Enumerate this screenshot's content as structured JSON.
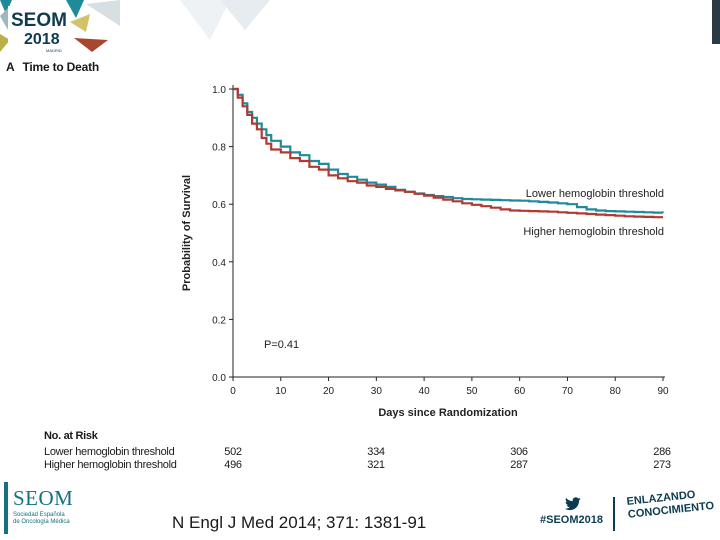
{
  "header": {
    "logo_word": "SEOM",
    "logo_year": "2018",
    "logo_small": "MADRID",
    "panel_letter": "A",
    "panel_title": "Time to Death"
  },
  "chart_data": {
    "type": "line",
    "title": "Time to Death",
    "xlabel": "Days since Randomization",
    "ylabel": "Probability of Survival",
    "xlim": [
      0,
      90
    ],
    "ylim": [
      0.0,
      1.0
    ],
    "x_ticks": [
      "0",
      "10",
      "20",
      "30",
      "40",
      "50",
      "60",
      "70",
      "80",
      "90"
    ],
    "y_ticks": [
      "0.0",
      "0.2",
      "0.4",
      "0.6",
      "0.8",
      "1.0"
    ],
    "annotation": "P=0.41",
    "series": [
      {
        "name": "Lower hemoglobin threshold",
        "color": "#1f8a9a",
        "x": [
          0,
          1,
          2,
          3,
          4,
          5,
          6,
          7,
          8,
          10,
          12,
          14,
          16,
          18,
          20,
          22,
          24,
          26,
          28,
          30,
          32,
          34,
          36,
          38,
          40,
          42,
          44,
          46,
          48,
          50,
          52,
          54,
          56,
          58,
          60,
          62,
          64,
          66,
          68,
          70,
          72,
          74,
          76,
          78,
          80,
          82,
          84,
          86,
          88,
          90
        ],
        "values": [
          1.0,
          0.98,
          0.95,
          0.92,
          0.9,
          0.88,
          0.86,
          0.84,
          0.82,
          0.8,
          0.78,
          0.77,
          0.75,
          0.74,
          0.72,
          0.705,
          0.695,
          0.685,
          0.675,
          0.668,
          0.66,
          0.65,
          0.643,
          0.637,
          0.632,
          0.628,
          0.625,
          0.621,
          0.618,
          0.617,
          0.616,
          0.615,
          0.614,
          0.613,
          0.612,
          0.61,
          0.608,
          0.606,
          0.603,
          0.6,
          0.59,
          0.582,
          0.578,
          0.576,
          0.575,
          0.574,
          0.573,
          0.572,
          0.571,
          0.57
        ]
      },
      {
        "name": "Higher hemoglobin threshold",
        "color": "#b03a32",
        "x": [
          0,
          1,
          2,
          3,
          4,
          5,
          6,
          7,
          8,
          10,
          12,
          14,
          16,
          18,
          20,
          22,
          24,
          26,
          28,
          30,
          32,
          34,
          36,
          38,
          40,
          42,
          44,
          46,
          48,
          50,
          52,
          54,
          56,
          58,
          60,
          62,
          64,
          66,
          68,
          70,
          72,
          74,
          76,
          78,
          80,
          82,
          84,
          86,
          88,
          90
        ],
        "values": [
          1.0,
          0.97,
          0.94,
          0.91,
          0.88,
          0.86,
          0.83,
          0.81,
          0.79,
          0.78,
          0.76,
          0.75,
          0.73,
          0.72,
          0.7,
          0.69,
          0.68,
          0.675,
          0.665,
          0.66,
          0.653,
          0.648,
          0.643,
          0.636,
          0.63,
          0.623,
          0.616,
          0.61,
          0.603,
          0.598,
          0.593,
          0.588,
          0.582,
          0.578,
          0.577,
          0.576,
          0.575,
          0.574,
          0.572,
          0.57,
          0.568,
          0.566,
          0.564,
          0.562,
          0.56,
          0.558,
          0.557,
          0.556,
          0.555,
          0.555
        ]
      }
    ]
  },
  "risk_table": {
    "title": "No. at Risk",
    "days": [
      0,
      30,
      60,
      90
    ],
    "rows": [
      {
        "label": "Lower hemoglobin threshold",
        "values": [
          "502",
          "334",
          "306",
          "286"
        ]
      },
      {
        "label": "Higher hemoglobin threshold",
        "values": [
          "496",
          "321",
          "287",
          "273"
        ]
      }
    ]
  },
  "footer": {
    "seom_name": "SEOM",
    "seom_sub_1": "Sociedad Española",
    "seom_sub_2": "de Oncología Médica",
    "citation": "N Engl J Med 2014; 371: 1381-91",
    "hashtag": "#SEOM2018",
    "slogan_1": "ENLAZANDO",
    "slogan_2": "CONOCIMIENTO"
  }
}
